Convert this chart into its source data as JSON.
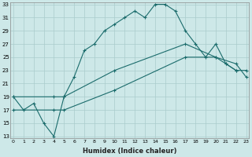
{
  "xlabel": "Humidex (Indice chaleur)",
  "bg_color": "#cde8e8",
  "grid_color": "#aacccc",
  "line_color": "#1a6b6b",
  "line1_x": [
    0,
    1,
    2,
    3,
    4,
    5,
    6,
    7,
    8,
    9,
    10,
    11,
    12,
    13,
    14,
    15,
    16,
    17,
    18,
    19,
    20,
    21,
    22
  ],
  "line1_y": [
    19,
    17,
    18,
    15,
    13,
    19,
    22,
    26,
    27,
    29,
    30,
    31,
    32,
    31,
    33,
    33,
    32,
    29,
    27,
    25,
    27,
    24,
    23
  ],
  "line2_x": [
    0,
    4,
    5,
    10,
    17,
    20,
    21,
    22,
    23
  ],
  "line2_y": [
    19,
    19,
    19,
    23,
    27,
    25,
    24,
    23,
    23
  ],
  "line3_x": [
    0,
    4,
    5,
    10,
    17,
    20,
    22,
    23
  ],
  "line3_y": [
    17,
    17,
    17,
    20,
    25,
    25,
    24,
    22
  ],
  "xmin": 0,
  "xmax": 23,
  "ymin": 13,
  "ymax": 33,
  "yticks": [
    13,
    15,
    17,
    19,
    21,
    23,
    25,
    27,
    29,
    31,
    33
  ],
  "xticks": [
    0,
    1,
    2,
    3,
    4,
    5,
    6,
    7,
    8,
    9,
    10,
    11,
    12,
    13,
    14,
    15,
    16,
    17,
    18,
    19,
    20,
    21,
    22,
    23
  ]
}
